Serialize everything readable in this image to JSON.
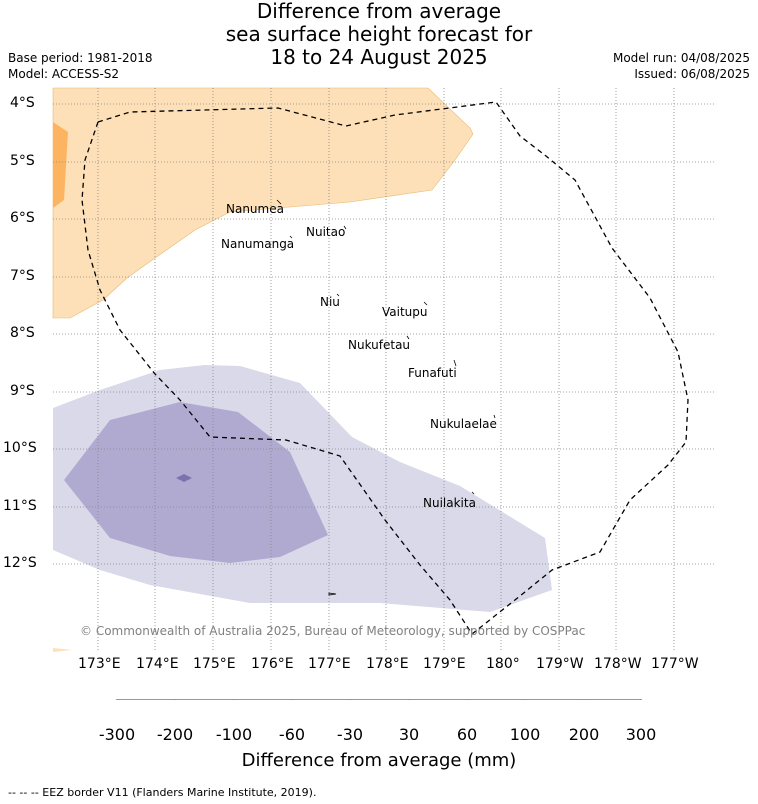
{
  "title": {
    "line1": "Difference from average",
    "line2": "sea surface height forecast for",
    "line3": "18 to 24 August 2025"
  },
  "meta": {
    "base_period": "Base period: 1981-2018",
    "model": "Model: ACCESS-S2",
    "model_run": "Model run: 04/08/2025",
    "issued": "Issued: 06/08/2025"
  },
  "map": {
    "lat_labels": [
      "4°S",
      "5°S",
      "6°S",
      "7°S",
      "8°S",
      "9°S",
      "10°S",
      "11°S",
      "12°S"
    ],
    "lon_labels": [
      "173°E",
      "174°E",
      "175°E",
      "176°E",
      "177°E",
      "178°E",
      "179°E",
      "180°",
      "179°W",
      "178°W",
      "177°W"
    ],
    "places": [
      "Nanumea",
      "Nanumanga",
      "Nuitao",
      "Niu",
      "Vaitupu",
      "Nukufetau",
      "Funafuti",
      "Nukulaelae",
      "Nuilakita"
    ],
    "copyright": "© Commonwealth of Australia 2025, Bureau of Meteorology, supported by COSPPac",
    "colors": {
      "pos_30_60": "#fde0b7",
      "pos_60_100": "#fdb461",
      "neg_30_60": "#d9d9e9",
      "neg_60_100": "#b0aad1",
      "neg_100_200": "#7e72ac"
    }
  },
  "colorbar": {
    "label": "Difference from average (mm)",
    "ticks": [
      "-300",
      "-200",
      "-100",
      "-60",
      "-30",
      "30",
      "60",
      "100",
      "200",
      "300"
    ],
    "colors": [
      "#3f0a6a",
      "#54238b",
      "#7e72ac",
      "#b0aad1",
      "#d9d9e9",
      "#ffffff",
      "#fde0b7",
      "#fdb461",
      "#e1821b",
      "#b25308",
      "#7f3b08"
    ]
  },
  "footer": "-- -- -- EEZ border V11 (Flanders Marine Institute, 2019)."
}
